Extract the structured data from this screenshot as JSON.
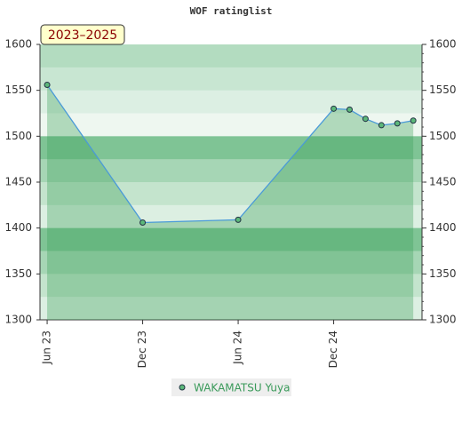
{
  "chart_data": {
    "type": "line",
    "title": "WOF ratinglist",
    "badge": "2023–2025",
    "x": [
      "2023-06",
      "2023-12",
      "2024-06",
      "2024-12",
      "2025-01",
      "2025-02",
      "2025-03",
      "2025-04",
      "2025-05"
    ],
    "xlim": [
      "2023-06",
      "2025-05"
    ],
    "xticks": [
      {
        "value": "2023-06",
        "label": "Jun 23"
      },
      {
        "value": "2023-12",
        "label": "Dec 23"
      },
      {
        "value": "2024-06",
        "label": "Jun 24"
      },
      {
        "value": "2024-12",
        "label": "Dec 24"
      }
    ],
    "series": [
      {
        "name": "WAKAMATSU Yuya",
        "color": "#5cb87a",
        "values": [
          1556,
          1406,
          1409,
          1530,
          1529,
          1519,
          1512,
          1514,
          1517
        ]
      }
    ],
    "ylim": [
      1300,
      1600
    ],
    "yticks": [
      1300,
      1350,
      1400,
      1450,
      1500,
      1550,
      1600
    ],
    "y2lim": [
      1300,
      1600
    ],
    "y2ticks": [
      1300,
      1350,
      1400,
      1450,
      1500,
      1550,
      1600
    ],
    "legend": "bottom"
  }
}
